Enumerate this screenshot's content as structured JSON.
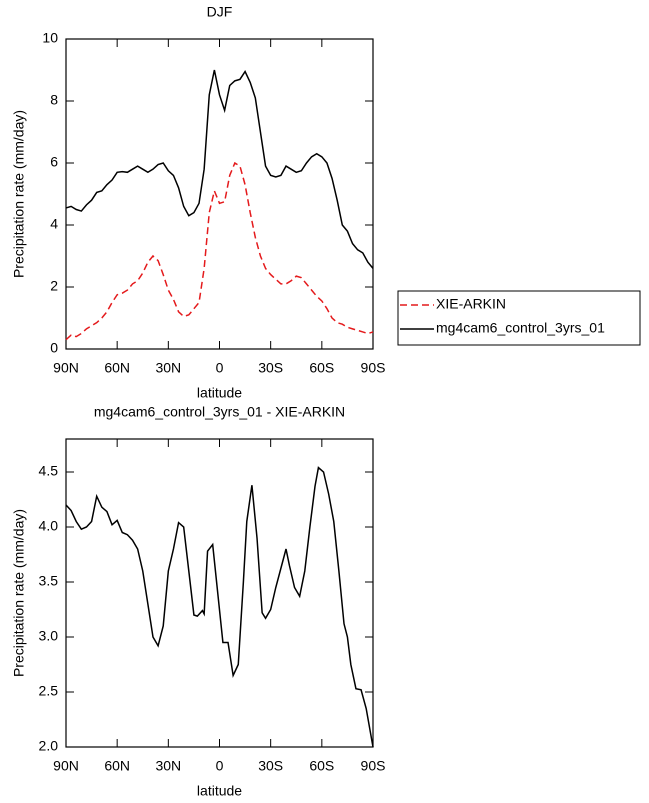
{
  "chart_data": [
    {
      "type": "line",
      "title": "DJF",
      "x_label": "latitude",
      "y_label": "Precipitation rate (mm/day)",
      "x": [
        90,
        87,
        84,
        81,
        78,
        75,
        72,
        69,
        66,
        63,
        60,
        57,
        54,
        51,
        48,
        45,
        42,
        39,
        36,
        33,
        30,
        27,
        24,
        21,
        18,
        15,
        12,
        9,
        6,
        3,
        0,
        -3,
        -6,
        -9,
        -12,
        -15,
        -18,
        -21,
        -24,
        -27,
        -30,
        -33,
        -36,
        -39,
        -42,
        -45,
        -48,
        -51,
        -54,
        -57,
        -60,
        -63,
        -66,
        -69,
        -72,
        -75,
        -78,
        -81,
        -84,
        -87,
        -90
      ],
      "series": [
        {
          "name": "XIE-ARKIN",
          "color": "#e41a1c",
          "dash": true,
          "values": [
            0.3,
            0.45,
            0.4,
            0.5,
            0.65,
            0.75,
            0.85,
            1.0,
            1.2,
            1.5,
            1.75,
            1.8,
            1.9,
            2.1,
            2.2,
            2.45,
            2.8,
            3.0,
            2.85,
            2.4,
            1.9,
            1.6,
            1.2,
            1.05,
            1.1,
            1.3,
            1.5,
            2.6,
            4.4,
            5.1,
            4.7,
            4.75,
            5.6,
            6.0,
            5.9,
            5.3,
            4.4,
            3.6,
            3.0,
            2.6,
            2.4,
            2.25,
            2.1,
            2.1,
            2.2,
            2.35,
            2.3,
            2.1,
            1.9,
            1.7,
            1.55,
            1.3,
            1.0,
            0.85,
            0.8,
            0.7,
            0.65,
            0.6,
            0.55,
            0.5,
            0.55
          ]
        },
        {
          "name": "mg4cam6_control_3yrs_01",
          "color": "#000000",
          "dash": false,
          "values": [
            4.55,
            4.6,
            4.5,
            4.45,
            4.65,
            4.8,
            5.05,
            5.1,
            5.3,
            5.45,
            5.7,
            5.72,
            5.7,
            5.8,
            5.9,
            5.8,
            5.7,
            5.8,
            5.95,
            6.0,
            5.75,
            5.6,
            5.2,
            4.6,
            4.3,
            4.4,
            4.7,
            5.8,
            8.2,
            9.0,
            8.2,
            7.7,
            8.5,
            8.65,
            8.7,
            8.95,
            8.6,
            8.1,
            7.0,
            5.9,
            5.6,
            5.55,
            5.6,
            5.9,
            5.8,
            5.7,
            5.75,
            6.0,
            6.2,
            6.3,
            6.2,
            6.0,
            5.5,
            4.8,
            4.0,
            3.8,
            3.4,
            3.2,
            3.1,
            2.8,
            2.6
          ]
        }
      ],
      "xlim": [
        90,
        -90
      ],
      "xticks": [
        {
          "value": 90,
          "label": "90N"
        },
        {
          "value": 60,
          "label": "60N"
        },
        {
          "value": 30,
          "label": "30N"
        },
        0,
        {
          "value": -30,
          "label": "30S"
        },
        {
          "value": -60,
          "label": "60S"
        },
        {
          "value": -90,
          "label": "90S"
        }
      ],
      "ylim": [
        0,
        10
      ],
      "yticks": [
        0,
        2,
        4,
        6,
        8,
        10
      ],
      "legend": "right"
    },
    {
      "type": "line",
      "title": "mg4cam6_control_3yrs_01 - XIE-ARKIN",
      "x_label": "latitude",
      "y_label": "Precipitation rate (mm/day)",
      "x": [
        90,
        87,
        84,
        81,
        78,
        75,
        72,
        69,
        66,
        63,
        60,
        57,
        54,
        51,
        48,
        45,
        42,
        39,
        36,
        33,
        30,
        27,
        24,
        21,
        18,
        15,
        13,
        10,
        9,
        7,
        4,
        -2,
        -5,
        -8,
        -11,
        -14,
        -16,
        -19,
        -22,
        -25,
        -27,
        -30,
        -33,
        -39,
        -41,
        -44,
        -47,
        -50,
        -53,
        -56,
        -58,
        -61,
        -64,
        -67,
        -70,
        -73,
        -75,
        -77,
        -80,
        -83,
        -86,
        -90
      ],
      "series": [
        {
          "color": "#000000",
          "dash": false,
          "values": [
            4.2,
            4.15,
            4.05,
            3.98,
            4.0,
            4.05,
            4.28,
            4.18,
            4.14,
            4.02,
            4.06,
            3.95,
            3.93,
            3.88,
            3.8,
            3.6,
            3.3,
            3.0,
            2.92,
            3.1,
            3.6,
            3.8,
            4.04,
            4.0,
            3.6,
            3.2,
            3.19,
            3.24,
            3.21,
            3.78,
            3.84,
            2.95,
            2.95,
            2.65,
            2.75,
            3.5,
            4.05,
            4.38,
            3.9,
            3.22,
            3.17,
            3.25,
            3.45,
            3.8,
            3.65,
            3.45,
            3.37,
            3.6,
            4.0,
            4.37,
            4.54,
            4.5,
            4.3,
            4.05,
            3.6,
            3.12,
            3.0,
            2.75,
            2.53,
            2.52,
            2.35,
            2.0
          ]
        }
      ],
      "xlim": [
        90,
        -90
      ],
      "xticks": [
        {
          "value": 90,
          "label": "90N"
        },
        {
          "value": 60,
          "label": "60N"
        },
        {
          "value": 30,
          "label": "30N"
        },
        0,
        {
          "value": -30,
          "label": "30S"
        },
        {
          "value": -60,
          "label": "60S"
        },
        {
          "value": -90,
          "label": "90S"
        }
      ],
      "ylim": [
        2.0,
        4.8
      ],
      "yticks": [
        {
          "value": 2,
          "label": "2.0"
        },
        2.5,
        {
          "value": 3,
          "label": "3.0"
        },
        3.5,
        {
          "value": 4,
          "label": "4.0"
        },
        4.5
      ]
    }
  ]
}
